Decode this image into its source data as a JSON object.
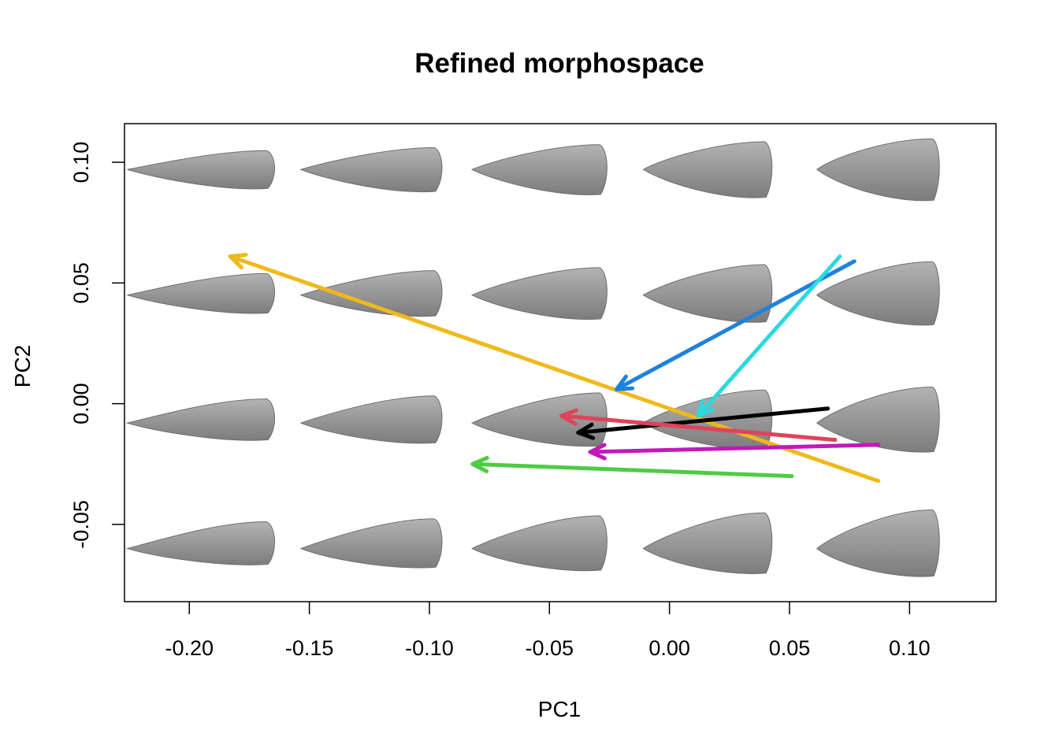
{
  "chart_data": {
    "type": "scatter",
    "title": "Refined morphospace",
    "xlabel": "PC1",
    "ylabel": "PC2",
    "xlim": [
      -0.227,
      0.136
    ],
    "ylim": [
      -0.082,
      0.116
    ],
    "x_ticks": [
      -0.2,
      -0.15,
      -0.1,
      -0.05,
      0.0,
      0.05,
      0.1
    ],
    "x_tick_labels": [
      "-0.20",
      "-0.15",
      "-0.10",
      "-0.05",
      "0.00",
      "0.05",
      "0.10"
    ],
    "y_ticks": [
      -0.05,
      0.0,
      0.05,
      0.1
    ],
    "y_tick_labels": [
      "-0.05",
      "0.00",
      "0.05",
      "0.10"
    ],
    "grid": false,
    "background_shapes": {
      "description_type": "seed-shape-grid",
      "columns_x": [
        -0.195,
        -0.124,
        -0.054,
        0.016,
        0.087
      ],
      "rows_y": [
        0.097,
        0.045,
        -0.008,
        -0.06
      ]
    },
    "series": [
      {
        "name": "yellow",
        "color": "#F0B81C",
        "x_start": 0.087,
        "y_start": -0.032,
        "x_end": -0.183,
        "y_end": 0.061
      },
      {
        "name": "blue",
        "color": "#1E82DD",
        "x_start": 0.077,
        "y_start": 0.059,
        "x_end": -0.022,
        "y_end": 0.006
      },
      {
        "name": "cyan",
        "color": "#2CD9DE",
        "x_start": 0.071,
        "y_start": 0.061,
        "x_end": 0.012,
        "y_end": -0.005
      },
      {
        "name": "black",
        "color": "#000000",
        "x_start": 0.066,
        "y_start": -0.002,
        "x_end": -0.038,
        "y_end": -0.012
      },
      {
        "name": "red",
        "color": "#DF4359",
        "x_start": 0.069,
        "y_start": -0.015,
        "x_end": -0.045,
        "y_end": -0.005
      },
      {
        "name": "magenta",
        "color": "#C418B8",
        "x_start": 0.087,
        "y_start": -0.017,
        "x_end": -0.033,
        "y_end": -0.02
      },
      {
        "name": "green",
        "color": "#4ECB44",
        "x_start": 0.051,
        "y_start": -0.03,
        "x_end": -0.082,
        "y_end": -0.025
      }
    ]
  }
}
